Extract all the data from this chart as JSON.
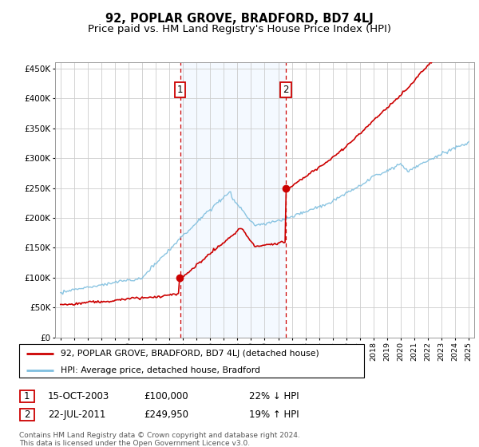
{
  "title": "92, POPLAR GROVE, BRADFORD, BD7 4LJ",
  "subtitle": "Price paid vs. HM Land Registry's House Price Index (HPI)",
  "title_fontsize": 10.5,
  "subtitle_fontsize": 9.5,
  "background_color": "#ffffff",
  "plot_bg_color": "#ffffff",
  "grid_color": "#cccccc",
  "ylim": [
    0,
    460000
  ],
  "yticks": [
    0,
    50000,
    100000,
    150000,
    200000,
    250000,
    300000,
    350000,
    400000,
    450000
  ],
  "hpi_color": "#7fbfdf",
  "price_color": "#cc0000",
  "sale1_year": 2003.79,
  "sale1_price": 100000,
  "sale2_year": 2011.55,
  "sale2_price": 249950,
  "shade_color": "#ddeeff",
  "legend_entry1": "92, POPLAR GROVE, BRADFORD, BD7 4LJ (detached house)",
  "legend_entry2": "HPI: Average price, detached house, Bradford",
  "footnote": "Contains HM Land Registry data © Crown copyright and database right 2024.\nThis data is licensed under the Open Government Licence v3.0.",
  "table_row1_date": "15-OCT-2003",
  "table_row1_price": "£100,000",
  "table_row1_hpi": "22% ↓ HPI",
  "table_row2_date": "22-JUL-2011",
  "table_row2_price": "£249,950",
  "table_row2_hpi": "19% ↑ HPI"
}
